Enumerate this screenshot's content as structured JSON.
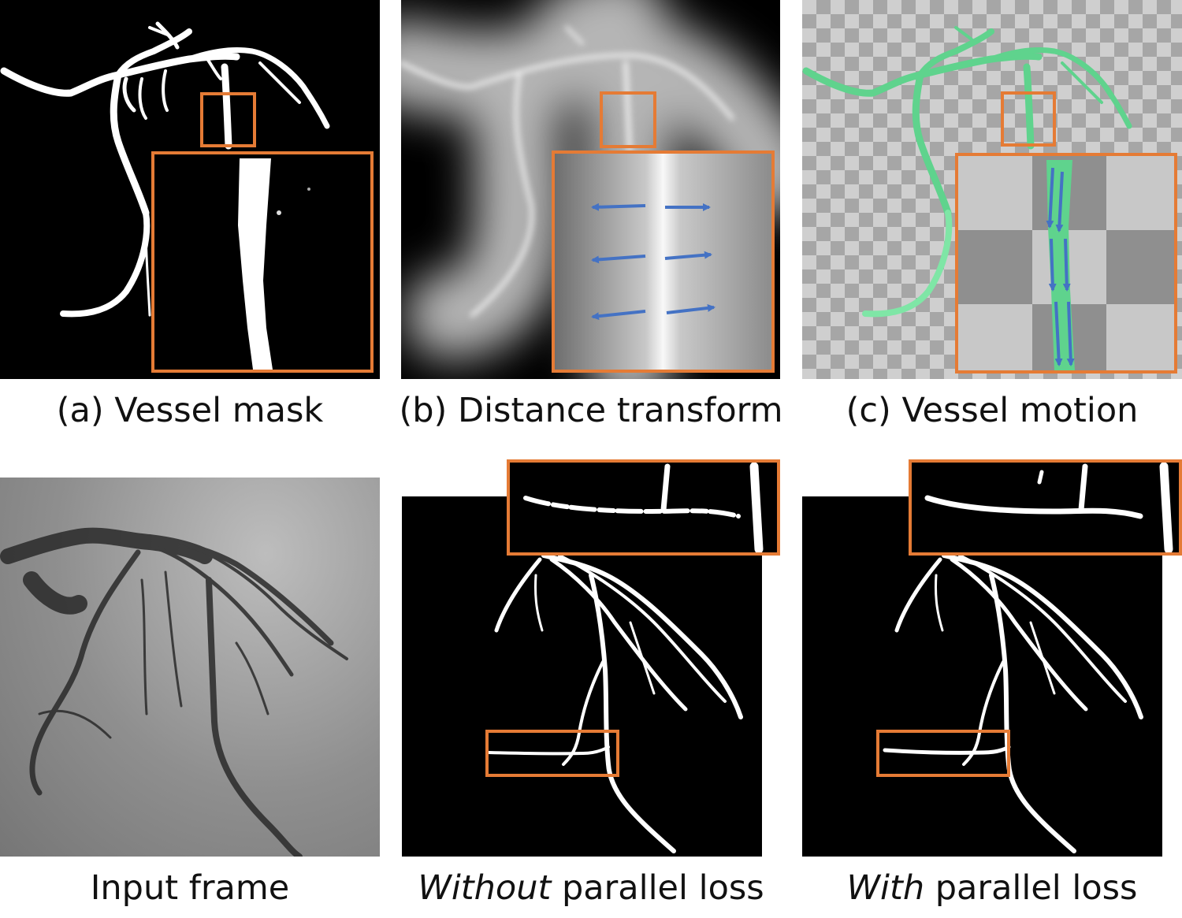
{
  "figure": {
    "panel_a": {
      "caption": "(a) Vessel mask"
    },
    "panel_b": {
      "caption": "(b) Distance transform"
    },
    "panel_c": {
      "caption": "(c) Vessel motion"
    },
    "panel_input": {
      "caption": "Input frame"
    },
    "panel_without": {
      "caption_em": "Without",
      "caption_rest": " parallel loss"
    },
    "panel_with": {
      "caption_em": "With",
      "caption_rest": " parallel loss"
    }
  },
  "colors": {
    "highlight_box": "#E57B35",
    "arrow": "#4472C4",
    "motion_vessel": "#5FD38D"
  }
}
